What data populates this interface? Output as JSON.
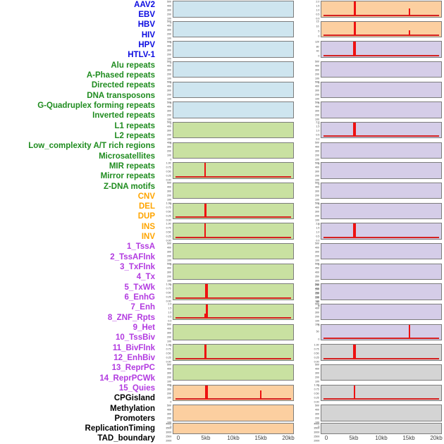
{
  "chart_data": {
    "type": "line",
    "title": "",
    "x_axis": {
      "ticks": [
        "0",
        "5kb",
        "10kb",
        "15kb",
        "20kb"
      ],
      "tick_kb": [
        0,
        5,
        10,
        15,
        20
      ],
      "range_kb": [
        0,
        20
      ]
    },
    "legend_position": "none",
    "grid": false,
    "group_colors": {
      "virus": "#0a0ae0",
      "repeat": "#1f8c1f",
      "sv": "#ffa500",
      "chromatin_state": "#b23ae0",
      "other": "#000000"
    },
    "track_bg_colors": {
      "blue": "#cee5ef",
      "green": "#c9e1a1",
      "orange": "#fccfa0",
      "purple": "#d5cde8",
      "gray": "#d4d4d4"
    },
    "signal_color": "#ee1111",
    "baseline_color": "#d42222",
    "tracks": [
      {
        "label": "AAV2",
        "group": "virus",
        "bg": "blue",
        "yticks": [
          "500",
          "400",
          "300",
          "200",
          "100",
          "0"
        ],
        "spikes": [],
        "baseline": false
      },
      {
        "label": "EBV",
        "group": "virus",
        "bg": "orange",
        "yticks": [
          "2.0",
          "1.5",
          "1.0",
          "0.5",
          "0.0"
        ],
        "spikes": [
          {
            "kb": 5,
            "h": 1,
            "w": 3
          },
          {
            "kb": 15,
            "h": 0.5,
            "w": 1.5
          }
        ],
        "baseline": true
      },
      {
        "label": "HBV",
        "group": "virus",
        "bg": "blue",
        "yticks": [
          "500",
          "400",
          "300",
          "200",
          "100",
          "0"
        ],
        "spikes": [],
        "baseline": false
      },
      {
        "label": "HIV",
        "group": "virus",
        "bg": "orange",
        "yticks": [
          "15",
          "10",
          "5",
          "0"
        ],
        "spikes": [
          {
            "kb": 5,
            "h": 1,
            "w": 3
          },
          {
            "kb": 15,
            "h": 0.4,
            "w": 1.5
          }
        ],
        "baseline": true
      },
      {
        "label": "HPV",
        "group": "virus",
        "bg": "blue",
        "yticks": [
          "500",
          "400",
          "300",
          "200",
          "100",
          "0"
        ],
        "spikes": [],
        "baseline": false
      },
      {
        "label": "HTLV-1",
        "group": "virus",
        "bg": "purple",
        "yticks": [
          "120",
          "80",
          "40",
          "0"
        ],
        "spikes": [
          {
            "kb": 5,
            "h": 1,
            "w": 3.5
          }
        ],
        "baseline": true
      },
      {
        "label": "Alu repeats",
        "group": "repeat",
        "bg": "blue",
        "yticks": [
          "500",
          "400",
          "300",
          "200",
          "100",
          "0"
        ],
        "spikes": [],
        "baseline": false
      },
      {
        "label": "A-Phased repeats",
        "group": "repeat",
        "bg": "purple",
        "yticks": [
          "500",
          "400",
          "300",
          "200",
          "100",
          "0"
        ],
        "spikes": [],
        "baseline": false
      },
      {
        "label": "Directed repeats",
        "group": "repeat",
        "bg": "blue",
        "yticks": [
          "500",
          "400",
          "300",
          "200",
          "100",
          "0"
        ],
        "spikes": [],
        "baseline": false
      },
      {
        "label": "DNA transposons",
        "group": "repeat",
        "bg": "purple",
        "yticks": [
          "500",
          "400",
          "300",
          "200",
          "100",
          "0"
        ],
        "spikes": [],
        "baseline": false
      },
      {
        "label": "G-Quadruplex forming repeats",
        "group": "repeat",
        "bg": "blue",
        "yticks": [
          "500",
          "400",
          "300",
          "200",
          "100",
          "0"
        ],
        "spikes": [],
        "baseline": false
      },
      {
        "label": "Inverted repeats",
        "group": "repeat",
        "bg": "purple",
        "yticks": [
          "500",
          "400",
          "300",
          "200",
          "100",
          "0"
        ],
        "spikes": [],
        "baseline": false
      },
      {
        "label": "L1 repeats",
        "group": "repeat",
        "bg": "green",
        "yticks": [
          "500",
          "400",
          "300",
          "200",
          "100",
          "0"
        ],
        "spikes": [],
        "baseline": false
      },
      {
        "label": "L2 repeats",
        "group": "repeat",
        "bg": "purple",
        "yticks": [
          "2.0",
          "1.5",
          "1.0",
          "0.5",
          "0.0"
        ],
        "spikes": [
          {
            "kb": 5,
            "h": 1,
            "w": 3.5
          }
        ],
        "baseline": true
      },
      {
        "label": "Low_complexity A/T rich regions",
        "group": "repeat",
        "bg": "green",
        "yticks": [
          "400",
          "300",
          "200",
          "100",
          "0"
        ],
        "spikes": [],
        "baseline": false
      },
      {
        "label": "Microsatellites",
        "group": "repeat",
        "bg": "purple",
        "yticks": [
          "500",
          "400",
          "300",
          "200",
          "100",
          "0"
        ],
        "spikes": [],
        "baseline": false
      },
      {
        "label": "MIR repeats",
        "group": "repeat",
        "bg": "green",
        "yticks": [
          "1.00",
          "0.75",
          "0.50",
          "0.25",
          "0.00"
        ],
        "spikes": [
          {
            "kb": 4.8,
            "h": 1,
            "w": 2
          }
        ],
        "baseline": true
      },
      {
        "label": "Mirror repeats",
        "group": "repeat",
        "bg": "purple",
        "yticks": [
          "500",
          "400",
          "300",
          "200",
          "100",
          "0"
        ],
        "spikes": [],
        "baseline": false
      },
      {
        "label": "Z-DNA motifs",
        "group": "repeat",
        "bg": "green",
        "yticks": [
          "500",
          "400",
          "300",
          "200",
          "100",
          "0"
        ],
        "spikes": [],
        "baseline": false
      },
      {
        "label": "CNV",
        "group": "sv",
        "bg": "purple",
        "yticks": [
          "500",
          "400",
          "300",
          "200",
          "100",
          "0"
        ],
        "spikes": [],
        "baseline": false
      },
      {
        "label": "DEL",
        "group": "sv",
        "bg": "green",
        "yticks": [
          "1.00",
          "0.75",
          "0.50",
          "0.25",
          "0.00"
        ],
        "spikes": [
          {
            "kb": 4.8,
            "h": 1,
            "w": 2.5
          }
        ],
        "baseline": true
      },
      {
        "label": "DUP",
        "group": "sv",
        "bg": "purple",
        "yticks": [
          "500",
          "400",
          "300",
          "200",
          "100",
          "0"
        ],
        "spikes": [],
        "baseline": false
      },
      {
        "label": "INS",
        "group": "sv",
        "bg": "green",
        "yticks": [
          "1.00",
          "0.75",
          "0.50",
          "0.25",
          "0.00"
        ],
        "spikes": [
          {
            "kb": 4.8,
            "h": 1,
            "w": 2
          }
        ],
        "baseline": true
      },
      {
        "label": "INV",
        "group": "sv",
        "bg": "purple",
        "yticks": [
          "2.0",
          "1.5",
          "1.0",
          "0.5",
          "0.0"
        ],
        "spikes": [
          {
            "kb": 5,
            "h": 1,
            "w": 3.5
          }
        ],
        "baseline": true
      },
      {
        "label": "1_TssA",
        "group": "chromatin_state",
        "bg": "green",
        "yticks": [
          "500",
          "400",
          "300",
          "200",
          "100",
          "0"
        ],
        "spikes": [],
        "baseline": false
      },
      {
        "label": "2_TssAFlnk",
        "group": "chromatin_state",
        "bg": "purple",
        "yticks": [
          "500",
          "400",
          "300",
          "200",
          "100",
          "0"
        ],
        "spikes": [],
        "baseline": false
      },
      {
        "label": "3_TxFlnk",
        "group": "chromatin_state",
        "bg": "green",
        "yticks": [
          "500",
          "400",
          "300",
          "200",
          "100",
          "0"
        ],
        "spikes": [],
        "baseline": false
      },
      {
        "label": "4_Tx",
        "group": "chromatin_state",
        "bg": "purple",
        "yticks": [
          "500",
          "450",
          "400",
          "350",
          "300",
          "250",
          "200",
          "150",
          "100",
          "50",
          "0"
        ],
        "spikes": [],
        "baseline": false
      },
      {
        "label": "5_TxWk",
        "group": "chromatin_state",
        "bg": "green",
        "yticks": [
          "1.00",
          "0.75",
          "0.50",
          "0.25",
          "0.00"
        ],
        "spikes": [
          {
            "kb": 5,
            "h": 1,
            "w": 3.5
          }
        ],
        "baseline": true
      },
      {
        "label": "6_EnhG",
        "group": "chromatin_state",
        "bg": "purple",
        "yticks": [
          "500",
          "400",
          "300",
          "200",
          "100",
          "0"
        ],
        "spikes": [],
        "baseline": false
      },
      {
        "label": "7_Enh",
        "group": "chromatin_state",
        "bg": "green",
        "yticks": [
          "2.0",
          "1.5",
          "1.0",
          "0.5",
          "0.0"
        ],
        "spikes": [
          {
            "kb": 4.7,
            "h": 0.35,
            "w": 2
          },
          {
            "kb": 5,
            "h": 1,
            "w": 3
          }
        ],
        "baseline": true
      },
      {
        "label": "8_ZNF_Rpts",
        "group": "chromatin_state",
        "bg": "purple",
        "yticks": [
          "500",
          "400",
          "300",
          "200",
          "100",
          "0"
        ],
        "spikes": [],
        "baseline": false
      },
      {
        "label": "9_Het",
        "group": "chromatin_state",
        "bg": "green",
        "yticks": [
          "500",
          "400",
          "300",
          "200",
          "100",
          "0"
        ],
        "spikes": [],
        "baseline": false
      },
      {
        "label": "10_TssBiv",
        "group": "chromatin_state",
        "bg": "purple",
        "yticks": [
          "100",
          "50",
          "0"
        ],
        "spikes": [
          {
            "kb": 15,
            "h": 1,
            "w": 2
          }
        ],
        "baseline": true
      },
      {
        "label": "11_BivFlnk",
        "group": "chromatin_state",
        "bg": "green",
        "yticks": [
          "1.00",
          "0.75",
          "0.50",
          "0.25",
          "0.00"
        ],
        "spikes": [
          {
            "kb": 4.8,
            "h": 1,
            "w": 2.5
          }
        ],
        "baseline": true
      },
      {
        "label": "12_EnhBiv",
        "group": "chromatin_state",
        "bg": "gray",
        "yticks": [
          "1.00",
          "0.75",
          "0.50",
          "0.25",
          "0.00"
        ],
        "spikes": [
          {
            "kb": 5,
            "h": 1,
            "w": 3.5
          }
        ],
        "baseline": true
      },
      {
        "label": "13_ReprPC",
        "group": "chromatin_state",
        "bg": "green",
        "yticks": [
          "500",
          "400",
          "300",
          "200",
          "100",
          "0"
        ],
        "spikes": [],
        "baseline": false
      },
      {
        "label": "14_ReprPCWk",
        "group": "chromatin_state",
        "bg": "gray",
        "yticks": [
          "500",
          "400",
          "300",
          "200",
          "100",
          "0"
        ],
        "spikes": [],
        "baseline": false
      },
      {
        "label": "15_Quies",
        "group": "chromatin_state",
        "bg": "orange",
        "yticks": [
          "400",
          "300",
          "200",
          "100",
          "0"
        ],
        "spikes": [
          {
            "kb": 5,
            "h": 1,
            "w": 3.5
          },
          {
            "kb": 14.9,
            "h": 0.62,
            "w": 2
          }
        ],
        "baseline": true
      },
      {
        "label": "CPGisland",
        "group": "other",
        "bg": "gray",
        "yticks": [
          "1.00",
          "0.75",
          "0.50",
          "0.25",
          "0.00"
        ],
        "spikes": [
          {
            "kb": 5,
            "h": 1,
            "w": 2
          }
        ],
        "baseline": true
      },
      {
        "label": "Methylation",
        "group": "other",
        "bg": "orange",
        "yticks": [
          "500",
          "400",
          "300",
          "200",
          "100",
          "0"
        ],
        "spikes": [],
        "baseline": false
      },
      {
        "label": "Promoters",
        "group": "other",
        "bg": "gray",
        "yticks": [
          "500",
          "400",
          "300",
          "200",
          "100",
          "0"
        ],
        "spikes": [],
        "baseline": false
      },
      {
        "label": "ReplicationTiming",
        "group": "other",
        "bg": "orange",
        "yticks": [
          "4000",
          "3500",
          "3000",
          "2500",
          "2000",
          "1500",
          "1000",
          "500",
          "0"
        ],
        "spikes": [],
        "baseline": false
      },
      {
        "label": "TAD_boundary",
        "group": "other",
        "bg": "gray",
        "yticks": [
          "4000",
          "3500",
          "3000",
          "2500",
          "2000",
          "1500",
          "1000",
          "500",
          "0"
        ],
        "spikes": [],
        "baseline": false
      }
    ]
  }
}
